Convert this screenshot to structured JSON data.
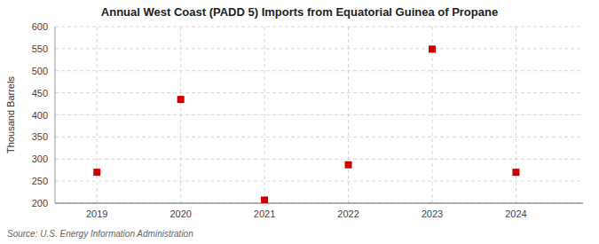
{
  "chart_data": {
    "type": "scatter",
    "title": "Annual West Coast (PADD 5) Imports from Equatorial Guinea of Propane",
    "y_label": "Thousand Barrels",
    "source": "Source: U.S. Energy Information Administration",
    "x": [
      2019,
      2020,
      2021,
      2022,
      2023,
      2024
    ],
    "values": [
      270,
      435,
      207,
      287,
      549,
      270
    ],
    "color": "#cc0000",
    "marker": "square",
    "xlim": [
      2018.5,
      2024.8
    ],
    "xticks": [
      2019,
      2020,
      2021,
      2022,
      2023,
      2024
    ],
    "ylim": [
      200,
      600
    ],
    "yticks": [
      200,
      250,
      300,
      350,
      400,
      450,
      500,
      550,
      600
    ],
    "grid": true
  }
}
